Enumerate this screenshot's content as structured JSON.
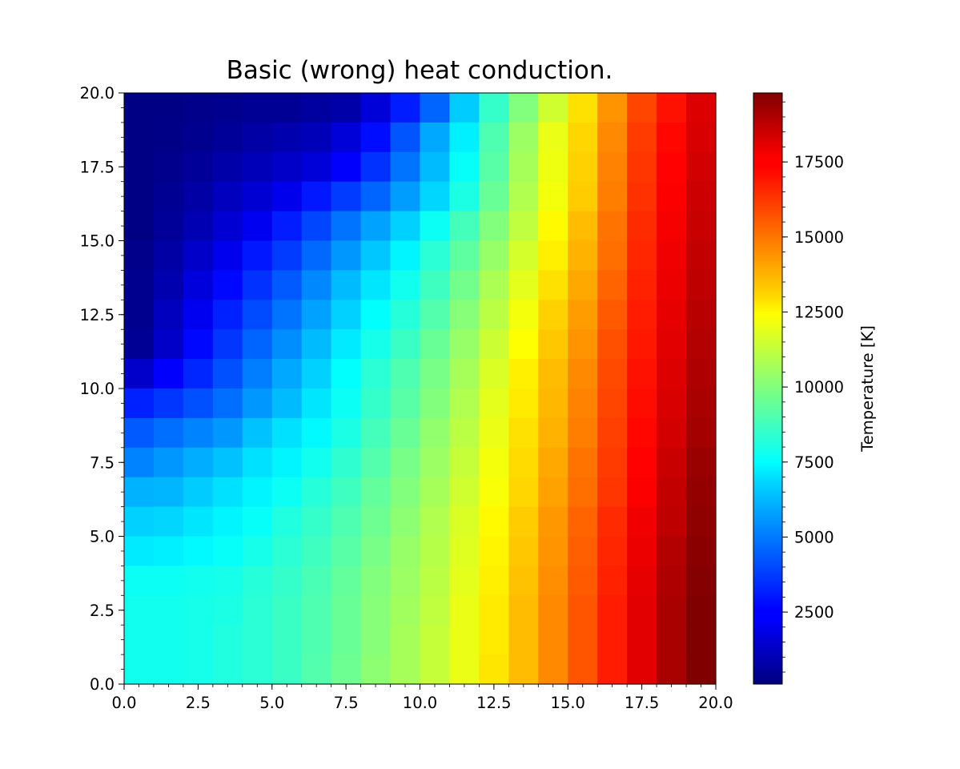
{
  "chart_data": {
    "type": "heatmap",
    "title": "Basic (wrong) heat conduction.",
    "xlabel": "",
    "ylabel": "",
    "xlim": [
      0,
      20
    ],
    "ylim": [
      0,
      20
    ],
    "x_ticks": [
      "0.0",
      "2.5",
      "5.0",
      "7.5",
      "10.0",
      "12.5",
      "15.0",
      "17.5",
      "20.0"
    ],
    "y_ticks": [
      "0.0",
      "2.5",
      "5.0",
      "7.5",
      "10.0",
      "12.5",
      "15.0",
      "17.5",
      "20.0"
    ],
    "colormap": "jet",
    "grid": false,
    "colorbar": {
      "label": "Temperature [K]",
      "range": [
        100,
        19800
      ],
      "ticks": [
        "2500",
        "5000",
        "7500",
        "10000",
        "12500",
        "15000",
        "17500"
      ]
    },
    "rows_from_top": [
      [
        200,
        200,
        300,
        400,
        500,
        500,
        700,
        900,
        1800,
        3100,
        4500,
        6500,
        8500,
        10000,
        11500,
        13000,
        14500,
        16000,
        17000,
        18000
      ],
      [
        200,
        250,
        400,
        600,
        800,
        1000,
        1200,
        1800,
        2800,
        4200,
        5800,
        7200,
        9000,
        10500,
        12000,
        13200,
        14700,
        16200,
        17200,
        18100
      ],
      [
        200,
        350,
        600,
        900,
        1200,
        1500,
        1800,
        2500,
        3500,
        4800,
        6200,
        7600,
        9200,
        10700,
        12100,
        13300,
        14800,
        16300,
        17300,
        18200
      ],
      [
        200,
        450,
        800,
        1300,
        1700,
        2200,
        3000,
        3700,
        4500,
        5600,
        6700,
        8000,
        9500,
        10900,
        12200,
        13400,
        14900,
        16400,
        17400,
        18300
      ],
      [
        200,
        600,
        1100,
        1700,
        2300,
        3100,
        3900,
        4800,
        5700,
        6600,
        7700,
        8800,
        10000,
        11200,
        12500,
        13700,
        15100,
        16500,
        17500,
        18400
      ],
      [
        300,
        800,
        1500,
        2200,
        3000,
        3700,
        4600,
        5500,
        6400,
        7300,
        8300,
        9300,
        10400,
        11600,
        12700,
        13900,
        15200,
        16600,
        17600,
        18500
      ],
      [
        400,
        1000,
        1900,
        2700,
        3500,
        4300,
        5200,
        6200,
        7000,
        7800,
        8700,
        9700,
        10800,
        11900,
        13000,
        14100,
        15400,
        16700,
        17700,
        18600
      ],
      [
        400,
        1300,
        2300,
        3200,
        4000,
        4800,
        5700,
        6600,
        7500,
        8200,
        9100,
        10100,
        11100,
        12200,
        13300,
        14300,
        15600,
        16800,
        17800,
        18700
      ],
      [
        500,
        1500,
        2700,
        3600,
        4500,
        5300,
        6200,
        7100,
        7900,
        8600,
        9500,
        10400,
        11400,
        12400,
        13500,
        14500,
        15800,
        16900,
        17900,
        18800
      ],
      [
        1500,
        2500,
        3300,
        4100,
        5000,
        5800,
        6600,
        7500,
        8300,
        9000,
        9800,
        10700,
        11700,
        12700,
        13700,
        14700,
        15900,
        17000,
        18000,
        18900
      ],
      [
        3200,
        3600,
        4100,
        4700,
        5500,
        6200,
        7000,
        7700,
        8500,
        9200,
        10000,
        10900,
        11900,
        12800,
        13800,
        14800,
        16000,
        17100,
        18100,
        19000
      ],
      [
        4300,
        4700,
        5100,
        5500,
        6300,
        6900,
        7400,
        8000,
        8800,
        9500,
        10300,
        11100,
        12000,
        13000,
        13900,
        14900,
        16100,
        17200,
        18200,
        19100
      ],
      [
        5100,
        5500,
        5900,
        6300,
        6900,
        7300,
        7800,
        8400,
        9100,
        9800,
        10500,
        11300,
        12200,
        13100,
        14100,
        15100,
        16200,
        17300,
        18400,
        19300
      ],
      [
        6000,
        6100,
        6500,
        6900,
        7300,
        7700,
        8200,
        8700,
        9400,
        10000,
        10700,
        11500,
        12300,
        13200,
        14200,
        15200,
        16300,
        17400,
        18500,
        19400
      ],
      [
        6600,
        6700,
        7000,
        7300,
        7600,
        8100,
        8500,
        9000,
        9600,
        10200,
        10900,
        11700,
        12500,
        13400,
        14400,
        15400,
        16500,
        17600,
        18600,
        19500
      ],
      [
        7100,
        7200,
        7400,
        7600,
        7900,
        8300,
        8700,
        9200,
        9800,
        10400,
        11000,
        11800,
        12600,
        13500,
        14500,
        15500,
        16600,
        17700,
        18800,
        19600
      ],
      [
        7700,
        7700,
        7800,
        7900,
        8200,
        8500,
        8900,
        9400,
        10000,
        10500,
        11100,
        11900,
        12700,
        13600,
        14600,
        15600,
        16700,
        17800,
        18900,
        19700
      ],
      [
        7800,
        7800,
        7900,
        8000,
        8300,
        8600,
        9000,
        9500,
        10100,
        10600,
        11200,
        12000,
        12800,
        13700,
        14700,
        15700,
        16800,
        17900,
        19000,
        19800
      ],
      [
        7800,
        7800,
        7900,
        8100,
        8300,
        8600,
        9000,
        9500,
        10100,
        10700,
        11300,
        12000,
        12800,
        13700,
        14700,
        15700,
        16800,
        17900,
        19000,
        19800
      ],
      [
        7800,
        7800,
        7900,
        8100,
        8300,
        8600,
        9100,
        9600,
        10200,
        10700,
        11300,
        12000,
        12900,
        13700,
        14700,
        15700,
        16800,
        17900,
        19000,
        19800
      ]
    ]
  }
}
